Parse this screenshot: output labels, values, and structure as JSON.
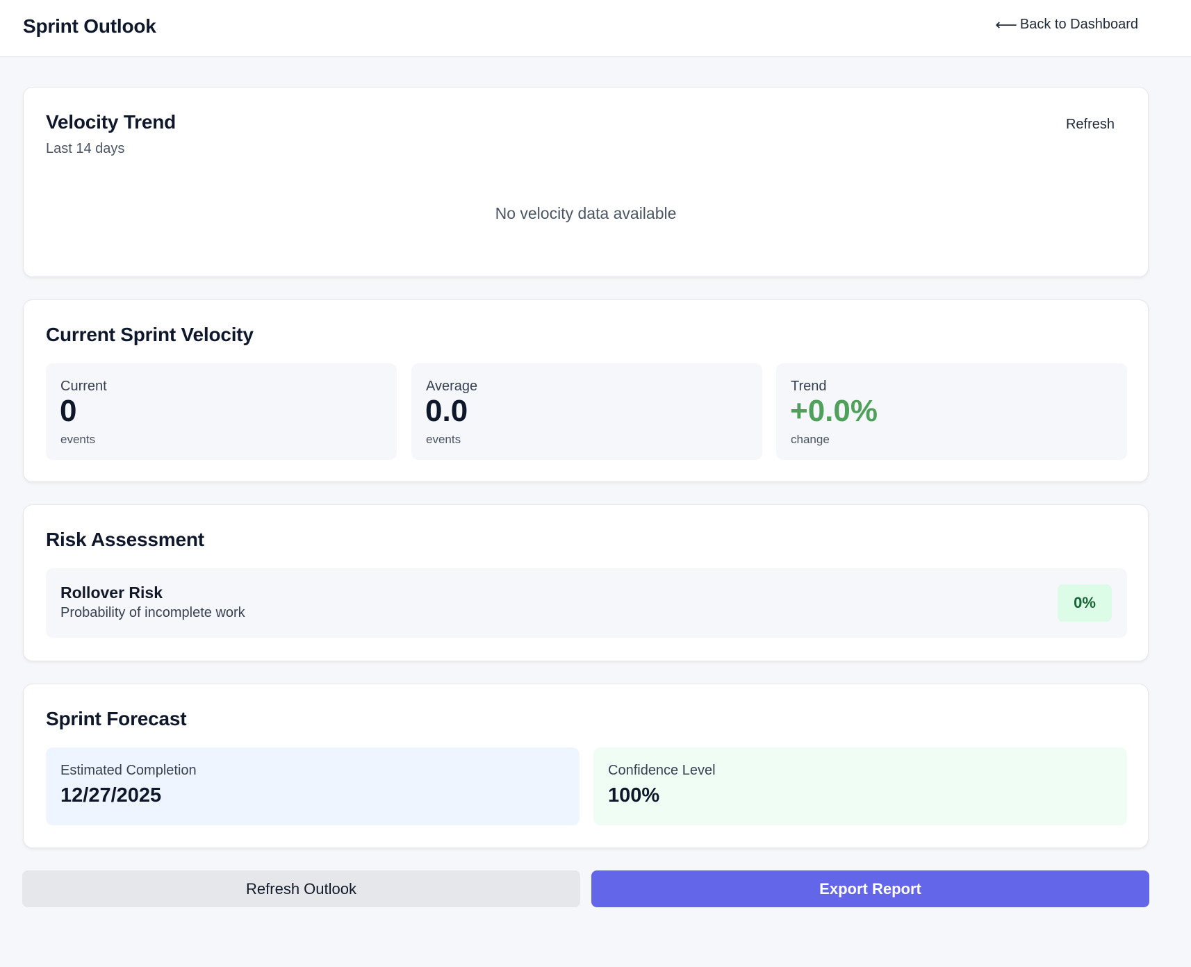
{
  "header": {
    "title": "Sprint Outlook",
    "back_arrow": "⟵",
    "back_label": "Back to Dashboard"
  },
  "velocity_trend": {
    "title": "Velocity Trend",
    "subtitle": "Last 14 days",
    "refresh_label": "Refresh",
    "empty_message": "No velocity data available"
  },
  "current_velocity": {
    "title": "Current Sprint Velocity",
    "stats": [
      {
        "label": "Current",
        "value": "0",
        "unit": "events"
      },
      {
        "label": "Average",
        "value": "0.0",
        "unit": "events"
      },
      {
        "label": "Trend",
        "value": "+0.0%",
        "unit": "change"
      }
    ]
  },
  "risk": {
    "title": "Risk Assessment",
    "item_name": "Rollover Risk",
    "item_desc": "Probability of incomplete work",
    "item_value": "0%"
  },
  "forecast": {
    "title": "Sprint Forecast",
    "completion_label": "Estimated Completion",
    "completion_value": "12/27/2025",
    "confidence_label": "Confidence Level",
    "confidence_value": "100%"
  },
  "actions": {
    "refresh_label": "Refresh Outlook",
    "export_label": "Export Report"
  },
  "colors": {
    "accent": "#6366e8",
    "positive": "#4ea05a",
    "badge_bg": "#dcfce7"
  }
}
